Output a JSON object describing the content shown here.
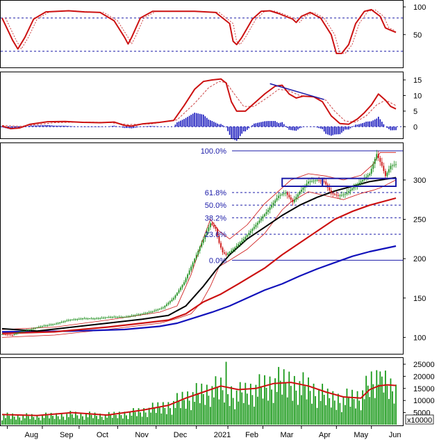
{
  "chart_data": {
    "type": "line",
    "colors": {
      "price_up": "#1f8f1f",
      "price_down": "#cc1111",
      "ma_fast": "#000000",
      "ma_mid": "#cc1111",
      "ma_slow": "#1111bb",
      "bands": "#cc1111",
      "fib": "#1a1aa8",
      "volume": "#1a9a1a",
      "volume_ma": "#cc1111",
      "stoch_line": "#cc1111",
      "stoch_ref": "#1a1aa8",
      "macd_hist": "#1111bb",
      "trendline": "#1a1aa8"
    },
    "x_labels": [
      "Aug",
      "Sep",
      "Oct",
      "Nov",
      "Dec",
      "2021",
      "Feb",
      "Mar",
      "Apr",
      "May",
      "Jun"
    ],
    "x_label_pos": [
      3,
      23,
      44,
      66,
      88,
      111,
      129,
      149,
      171,
      191,
      211
    ],
    "n_days": 226,
    "panels": {
      "stochastic": {
        "yticks": [
          "100",
          "50"
        ],
        "ylim": [
          -8,
          110
        ],
        "ref_lines": [
          80,
          20
        ],
        "k_line": [
          [
            0,
            80
          ],
          [
            6,
            40
          ],
          [
            9,
            24
          ],
          [
            13,
            45
          ],
          [
            18,
            78
          ],
          [
            25,
            91
          ],
          [
            38,
            93
          ],
          [
            47,
            91
          ],
          [
            56,
            90
          ],
          [
            64,
            75
          ],
          [
            70,
            45
          ],
          [
            72,
            33
          ],
          [
            74,
            45
          ],
          [
            79,
            80
          ],
          [
            86,
            92
          ],
          [
            110,
            92
          ],
          [
            122,
            90
          ],
          [
            130,
            70
          ],
          [
            132,
            38
          ],
          [
            134,
            32
          ],
          [
            137,
            45
          ],
          [
            143,
            78
          ],
          [
            148,
            92
          ],
          [
            153,
            93
          ],
          [
            158,
            88
          ],
          [
            166,
            78
          ],
          [
            168,
            72
          ],
          [
            171,
            83
          ],
          [
            176,
            90
          ],
          [
            182,
            80
          ],
          [
            188,
            50
          ],
          [
            191,
            16
          ],
          [
            194,
            16
          ],
          [
            198,
            32
          ],
          [
            202,
            70
          ],
          [
            207,
            92
          ],
          [
            211,
            95
          ],
          [
            216,
            83
          ],
          [
            219,
            62
          ],
          [
            222,
            58
          ],
          [
            225,
            54
          ]
        ]
      },
      "macd": {
        "yticks": [
          "15",
          "10",
          "5",
          "0"
        ],
        "ylim": [
          -3.5,
          17
        ],
        "macd_line": [
          [
            0,
            0.2
          ],
          [
            5,
            -0.6
          ],
          [
            10,
            -0.4
          ],
          [
            16,
            0.8
          ],
          [
            26,
            1.6
          ],
          [
            36,
            1.7
          ],
          [
            46,
            1.4
          ],
          [
            56,
            1.3
          ],
          [
            64,
            1.5
          ],
          [
            70,
            0.4
          ],
          [
            74,
            0.2
          ],
          [
            80,
            0.9
          ],
          [
            90,
            1.4
          ],
          [
            98,
            2.0
          ],
          [
            104,
            6.8
          ],
          [
            110,
            12
          ],
          [
            115,
            14.5
          ],
          [
            120,
            15.0
          ],
          [
            125,
            15.3
          ],
          [
            128,
            14.0
          ],
          [
            131,
            8.0
          ],
          [
            134,
            5.0
          ],
          [
            139,
            5.0
          ],
          [
            144,
            7.5
          ],
          [
            150,
            10.5
          ],
          [
            156,
            13.0
          ],
          [
            160,
            13.3
          ],
          [
            164,
            10.5
          ],
          [
            168,
            9.2
          ],
          [
            172,
            9.8
          ],
          [
            178,
            9.6
          ],
          [
            183,
            8.0
          ],
          [
            188,
            3.5
          ],
          [
            193,
            1.0
          ],
          [
            198,
            0.8
          ],
          [
            203,
            2.5
          ],
          [
            207,
            4.5
          ],
          [
            211,
            7.0
          ],
          [
            215,
            10.5
          ],
          [
            219,
            8.5
          ],
          [
            222,
            6.5
          ],
          [
            225,
            5.7
          ]
        ],
        "signal_line": [
          [
            0,
            0.4
          ],
          [
            10,
            0.1
          ],
          [
            20,
            0.7
          ],
          [
            30,
            1.3
          ],
          [
            45,
            1.5
          ],
          [
            60,
            1.4
          ],
          [
            72,
            0.7
          ],
          [
            85,
            0.9
          ],
          [
            100,
            2.2
          ],
          [
            110,
            7.5
          ],
          [
            118,
            12.5
          ],
          [
            124,
            14.5
          ],
          [
            128,
            14.2
          ],
          [
            132,
            11.0
          ],
          [
            138,
            6.5
          ],
          [
            144,
            6.5
          ],
          [
            152,
            9.5
          ],
          [
            158,
            12.0
          ],
          [
            164,
            11.5
          ],
          [
            170,
            10.0
          ],
          [
            178,
            9.5
          ],
          [
            185,
            8.5
          ],
          [
            190,
            5.0
          ],
          [
            196,
            1.8
          ],
          [
            202,
            1.5
          ],
          [
            208,
            3.5
          ],
          [
            214,
            7.0
          ],
          [
            219,
            8.5
          ],
          [
            225,
            6.8
          ]
        ],
        "trendline": [
          [
            153,
            13.8
          ],
          [
            184,
            8.7
          ]
        ]
      },
      "price": {
        "yticks": [
          "300",
          "250",
          "200",
          "150",
          "100"
        ],
        "ylim": [
          80,
          345
        ],
        "fib_levels": [
          {
            "label": "100.0%",
            "value": 337
          },
          {
            "label": "61.8%",
            "value": 284
          },
          {
            "label": "50.0%",
            "value": 268
          },
          {
            "label": "38.2%",
            "value": 252
          },
          {
            "label": "23.6%",
            "value": 231
          },
          {
            "label": "0.0%",
            "value": 198
          }
        ],
        "price_path": [
          [
            0,
            104
          ],
          [
            6,
            103
          ],
          [
            10,
            107
          ],
          [
            16,
            110
          ],
          [
            22,
            114
          ],
          [
            30,
            117
          ],
          [
            38,
            122
          ],
          [
            46,
            124
          ],
          [
            54,
            124
          ],
          [
            62,
            126
          ],
          [
            70,
            126
          ],
          [
            78,
            129
          ],
          [
            86,
            133
          ],
          [
            92,
            138
          ],
          [
            98,
            150
          ],
          [
            104,
            170
          ],
          [
            108,
            190
          ],
          [
            112,
            210
          ],
          [
            116,
            230
          ],
          [
            119,
            245
          ],
          [
            122,
            238
          ],
          [
            124,
            220
          ],
          [
            126,
            208
          ],
          [
            128,
            205
          ],
          [
            132,
            212
          ],
          [
            138,
            225
          ],
          [
            145,
            243
          ],
          [
            152,
            262
          ],
          [
            158,
            280
          ],
          [
            162,
            284
          ],
          [
            166,
            272
          ],
          [
            170,
            285
          ],
          [
            175,
            298
          ],
          [
            180,
            300
          ],
          [
            184,
            298
          ],
          [
            188,
            283
          ],
          [
            192,
            280
          ],
          [
            196,
            282
          ],
          [
            201,
            291
          ],
          [
            206,
            300
          ],
          [
            210,
            308
          ],
          [
            214,
            333
          ],
          [
            217,
            318
          ],
          [
            219,
            305
          ],
          [
            222,
            318
          ],
          [
            225,
            320
          ]
        ],
        "ma_fast": [
          [
            0,
            111
          ],
          [
            20,
            108
          ],
          [
            40,
            113
          ],
          [
            60,
            118
          ],
          [
            80,
            123
          ],
          [
            95,
            128
          ],
          [
            105,
            140
          ],
          [
            115,
            165
          ],
          [
            122,
            185
          ],
          [
            130,
            205
          ],
          [
            140,
            225
          ],
          [
            150,
            240
          ],
          [
            160,
            255
          ],
          [
            170,
            268
          ],
          [
            180,
            278
          ],
          [
            190,
            286
          ],
          [
            200,
            292
          ],
          [
            210,
            298
          ],
          [
            225,
            303
          ]
        ],
        "ma_mid": [
          [
            0,
            105
          ],
          [
            30,
            107
          ],
          [
            60,
            113
          ],
          [
            80,
            118
          ],
          [
            95,
            122
          ],
          [
            105,
            130
          ],
          [
            115,
            145
          ],
          [
            125,
            155
          ],
          [
            135,
            168
          ],
          [
            150,
            188
          ],
          [
            160,
            205
          ],
          [
            170,
            220
          ],
          [
            180,
            235
          ],
          [
            190,
            250
          ],
          [
            200,
            260
          ],
          [
            210,
            268
          ],
          [
            225,
            277
          ]
        ],
        "ma_slow": [
          [
            0,
            107
          ],
          [
            40,
            108
          ],
          [
            70,
            110
          ],
          [
            90,
            114
          ],
          [
            100,
            118
          ],
          [
            110,
            125
          ],
          [
            120,
            132
          ],
          [
            130,
            140
          ],
          [
            140,
            150
          ],
          [
            150,
            160
          ],
          [
            160,
            168
          ],
          [
            170,
            178
          ],
          [
            180,
            187
          ],
          [
            190,
            195
          ],
          [
            200,
            203
          ],
          [
            210,
            209
          ],
          [
            225,
            216
          ]
        ],
        "upper_band": [
          [
            0,
            110
          ],
          [
            30,
            113
          ],
          [
            60,
            122
          ],
          [
            90,
            132
          ],
          [
            100,
            140
          ],
          [
            108,
            180
          ],
          [
            114,
            220
          ],
          [
            119,
            250
          ],
          [
            124,
            235
          ],
          [
            130,
            225
          ],
          [
            140,
            243
          ],
          [
            150,
            270
          ],
          [
            160,
            290
          ],
          [
            165,
            300
          ],
          [
            175,
            308
          ],
          [
            185,
            305
          ],
          [
            195,
            300
          ],
          [
            205,
            306
          ],
          [
            212,
            320
          ],
          [
            216,
            335
          ],
          [
            225,
            335
          ]
        ],
        "lower_band": [
          [
            0,
            100
          ],
          [
            30,
            103
          ],
          [
            60,
            110
          ],
          [
            90,
            118
          ],
          [
            100,
            124
          ],
          [
            108,
            130
          ],
          [
            114,
            145
          ],
          [
            119,
            165
          ],
          [
            124,
            190
          ],
          [
            130,
            198
          ],
          [
            140,
            212
          ],
          [
            150,
            232
          ],
          [
            160,
            262
          ],
          [
            165,
            272
          ],
          [
            175,
            285
          ],
          [
            185,
            280
          ],
          [
            195,
            275
          ],
          [
            205,
            283
          ],
          [
            212,
            287
          ],
          [
            216,
            290
          ],
          [
            225,
            300
          ]
        ],
        "box1": {
          "x0": 160,
          "x1": 183,
          "y0": 292,
          "y1": 302
        },
        "box2": {
          "x0": 183,
          "x1": 225,
          "y0": 292,
          "y1": 302
        }
      },
      "volume": {
        "yticks": [
          "25000",
          "20000",
          "15000",
          "10000",
          "5000"
        ],
        "unit_label": "x10000",
        "ylim": [
          0,
          27000
        ],
        "volume_ma": [
          [
            0,
            4200
          ],
          [
            20,
            3800
          ],
          [
            40,
            5000
          ],
          [
            60,
            4000
          ],
          [
            80,
            6000
          ],
          [
            95,
            8000
          ],
          [
            105,
            11000
          ],
          [
            115,
            13500
          ],
          [
            125,
            16000
          ],
          [
            135,
            14500
          ],
          [
            145,
            15000
          ],
          [
            155,
            17000
          ],
          [
            165,
            17500
          ],
          [
            175,
            16000
          ],
          [
            185,
            13500
          ],
          [
            195,
            11500
          ],
          [
            205,
            11000
          ],
          [
            210,
            14500
          ],
          [
            215,
            16000
          ],
          [
            220,
            16500
          ],
          [
            225,
            16200
          ]
        ],
        "volume_trend": [
          [
            0,
            4000
          ],
          [
            20,
            3500
          ],
          [
            40,
            4500
          ],
          [
            60,
            3800
          ],
          [
            80,
            5800
          ],
          [
            95,
            8500
          ],
          [
            105,
            12000
          ],
          [
            115,
            14000
          ],
          [
            125,
            15500
          ],
          [
            135,
            13500
          ],
          [
            145,
            15500
          ],
          [
            155,
            17500
          ],
          [
            165,
            18500
          ],
          [
            175,
            16000
          ],
          [
            185,
            12000
          ],
          [
            195,
            11500
          ],
          [
            205,
            12500
          ],
          [
            210,
            17500
          ],
          [
            215,
            20000
          ],
          [
            220,
            16000
          ],
          [
            225,
            14000
          ]
        ]
      }
    }
  }
}
